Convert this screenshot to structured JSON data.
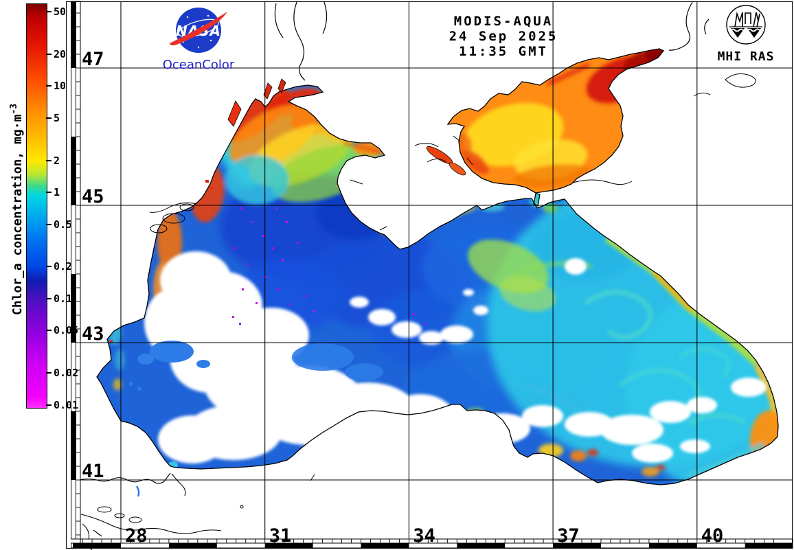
{
  "product": {
    "description": "Chlorophyll-a concentration satellite map of the Black Sea and Sea of Azov",
    "sensor": "MODIS-AQUA",
    "date": "24 Sep 2025",
    "time": "11:35 GMT"
  },
  "branding": {
    "nasa_text": "NASA",
    "oceancolor_text": "OceanColor",
    "mhi_text": "MHI RAS"
  },
  "colorbar": {
    "title": "Chlor_a concentration, mg·m",
    "title_exp": "-3",
    "units": "mg·m-3",
    "scale": "logarithmic",
    "domain_min": 0.0095,
    "domain_max": 60,
    "ticks": [
      {
        "label": "50",
        "value": 50
      },
      {
        "label": "20",
        "value": 20
      },
      {
        "label": "10",
        "value": 10
      },
      {
        "label": "5",
        "value": 5
      },
      {
        "label": "2",
        "value": 2
      },
      {
        "label": "1",
        "value": 1
      },
      {
        "label": "0.5",
        "value": 0.5
      },
      {
        "label": "0.2",
        "value": 0.2
      },
      {
        "label": "0.1",
        "value": 0.1
      },
      {
        "label": "0.05",
        "value": 0.05
      },
      {
        "label": "0.02",
        "value": 0.02
      },
      {
        "label": "0.01",
        "value": 0.01
      }
    ],
    "stops": [
      {
        "v": 60,
        "c": "#7E0000"
      },
      {
        "v": 45,
        "c": "#BE0000"
      },
      {
        "v": 25,
        "c": "#E41400"
      },
      {
        "v": 12,
        "c": "#FF4A00"
      },
      {
        "v": 6,
        "c": "#FF8C00"
      },
      {
        "v": 3,
        "c": "#FFC400"
      },
      {
        "v": 2,
        "c": "#FFE800"
      },
      {
        "v": 1.5,
        "c": "#B8E830"
      },
      {
        "v": 1.15,
        "c": "#38D890"
      },
      {
        "v": 0.95,
        "c": "#00D8E0"
      },
      {
        "v": 0.6,
        "c": "#00A8F0"
      },
      {
        "v": 0.35,
        "c": "#0070F0"
      },
      {
        "v": 0.2,
        "c": "#0046E6"
      },
      {
        "v": 0.15,
        "c": "#101CB0"
      },
      {
        "v": 0.11,
        "c": "#4014BC"
      },
      {
        "v": 0.07,
        "c": "#7008D0"
      },
      {
        "v": 0.045,
        "c": "#9800E4"
      },
      {
        "v": 0.025,
        "c": "#CC00F4"
      },
      {
        "v": 0.012,
        "c": "#F400FF"
      },
      {
        "v": 0.0095,
        "c": "#FF30FF"
      }
    ]
  },
  "map": {
    "lat_gridlines": [
      {
        "label": "47",
        "value": 47
      },
      {
        "label": "45",
        "value": 45
      },
      {
        "label": "43",
        "value": 43
      },
      {
        "label": "41",
        "value": 41
      }
    ],
    "lon_gridlines": [
      {
        "label": "28",
        "value": 28
      },
      {
        "label": "31",
        "value": 31
      },
      {
        "label": "34",
        "value": 34
      },
      {
        "label": "37",
        "value": 37
      },
      {
        "label": "40",
        "value": 40
      }
    ],
    "observations": [
      {
        "region": "Sea of Azov",
        "chl_mg_m3": "5-20",
        "appearance": "orange-red"
      },
      {
        "region": "Taganrog Bay (NE Azov)",
        "chl_mg_m3": ">20",
        "appearance": "dark red"
      },
      {
        "region": "Northwestern shelf coast (Odessa / Dnieper)",
        "chl_mg_m3": "10-50",
        "appearance": "red-orange"
      },
      {
        "region": "Western deep basin",
        "chl_mg_m3": "0.2-0.5",
        "appearance": "blue"
      },
      {
        "region": "Eastern basin",
        "chl_mg_m3": "0.5-1",
        "appearance": "cyan with eddies"
      },
      {
        "region": "Caucasus and Anatolian coastal rim",
        "chl_mg_m3": "1-5",
        "appearance": "yellow-green to orange"
      },
      {
        "region": "Southwestern basin",
        "chl_mg_m3": "no data",
        "appearance": "white (clouds)"
      }
    ]
  },
  "colors": {
    "background": "#FFFFFF",
    "grid_line": "#000000",
    "coastline": "#000000",
    "nasa_blue": "#1C3BC8",
    "nasa_red": "#E8302A",
    "oceancolor_blue": "#2222CC",
    "azov_orange": "#FF8C14",
    "deep_basin_blue": "#1848D4",
    "east_basin_cyan": "#2CC2E8",
    "no_data_white": "#FFFFFF"
  }
}
